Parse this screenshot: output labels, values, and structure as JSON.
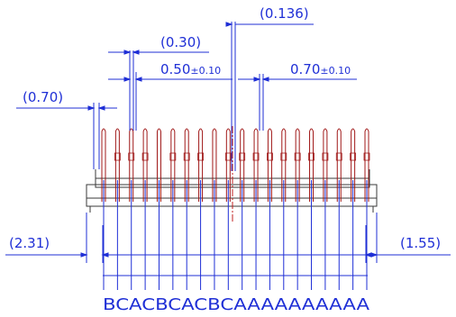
{
  "dimensions": {
    "d0136": "(0.136)",
    "d030": "(0.30)",
    "d050": "0.50",
    "d050_tol": "±0.10",
    "d070_pitch": "0.70",
    "d070_pitch_tol": "±0.10",
    "d070_left": "(0.70)",
    "d231": "(2.31)",
    "d155": "(1.55)"
  },
  "pin_letters": "BCACBCACBCAAAAAAAAAA",
  "colors": {
    "dimension": "#1f2fd6",
    "pin": "#a01818",
    "body": "#3a3a3a",
    "center": "#c02020"
  }
}
